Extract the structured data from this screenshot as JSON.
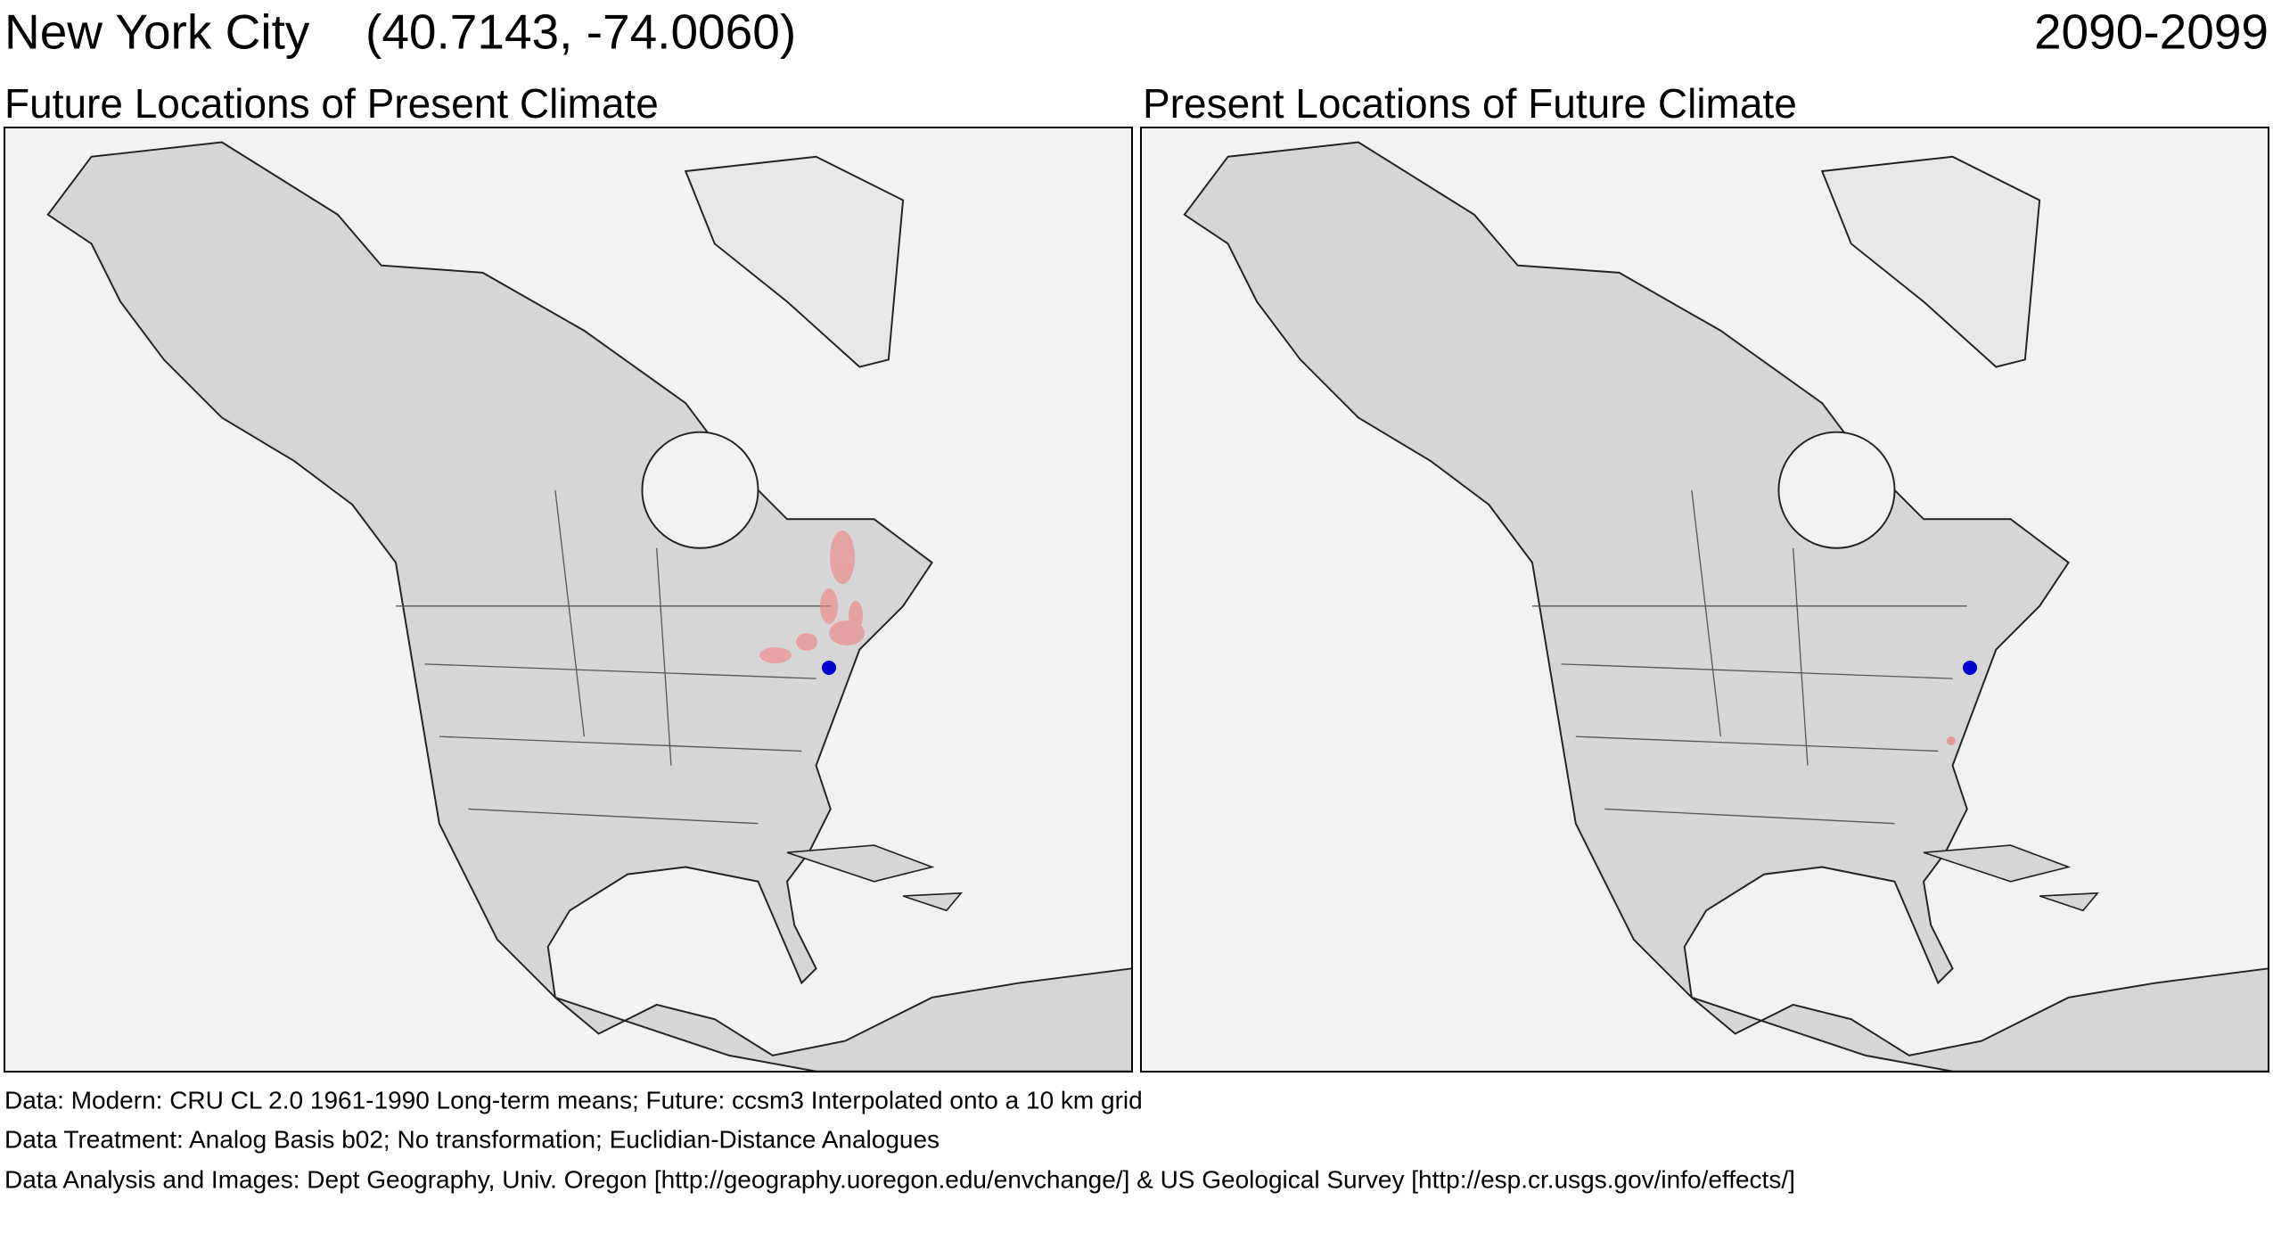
{
  "header": {
    "title": "New York City",
    "coordinates": "(40.7143, -74.0060)",
    "period": "2090-2099"
  },
  "panels": [
    {
      "title": "Future Locations of Present Climate"
    },
    {
      "title": "Present Locations of Future Climate"
    }
  ],
  "footer": [
    "Data:  Modern: CRU CL 2.0 1961-1990 Long-term means; Future: ccsm3 Interpolated onto a 10 km grid",
    "Data Treatment:  Analog Basis b02; No transformation; Euclidian-Distance Analogues",
    "Data Analysis and Images:  Dept Geography, Univ. Oregon [http://geography.uoregon.edu/envchange/] & US Geological Survey [http://esp.cr.usgs.gov/info/effects/]"
  ]
}
